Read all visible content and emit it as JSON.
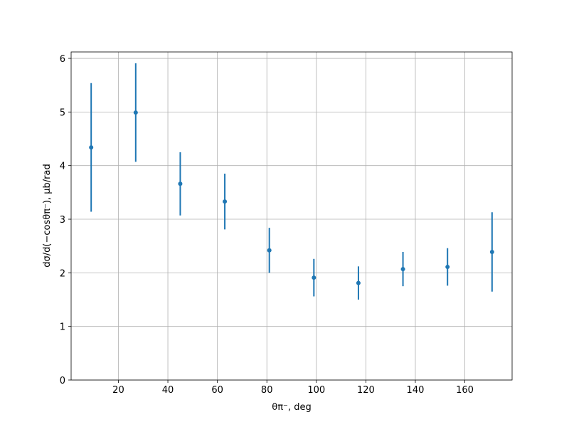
{
  "chart_data": {
    "type": "errorbar",
    "x_label": "θπ⁻, deg",
    "y_label": "dσ/d(−cosθπ⁻), μb/rad",
    "x": [
      9,
      27,
      45,
      63,
      81,
      99,
      117,
      135,
      153,
      171
    ],
    "values": [
      4.34,
      4.99,
      3.66,
      3.33,
      2.42,
      1.91,
      1.81,
      2.07,
      2.11,
      2.39
    ],
    "errors": [
      1.2,
      0.92,
      0.59,
      0.52,
      0.42,
      0.35,
      0.31,
      0.32,
      0.35,
      0.74
    ],
    "color": "#1f77b4",
    "xlim": [
      0.9,
      179.1
    ],
    "ylim": [
      0,
      6.12
    ],
    "xticks": [
      20,
      40,
      60,
      80,
      100,
      120,
      140,
      160
    ],
    "yticks": [
      0,
      1,
      2,
      3,
      4,
      5,
      6
    ],
    "grid": true
  }
}
